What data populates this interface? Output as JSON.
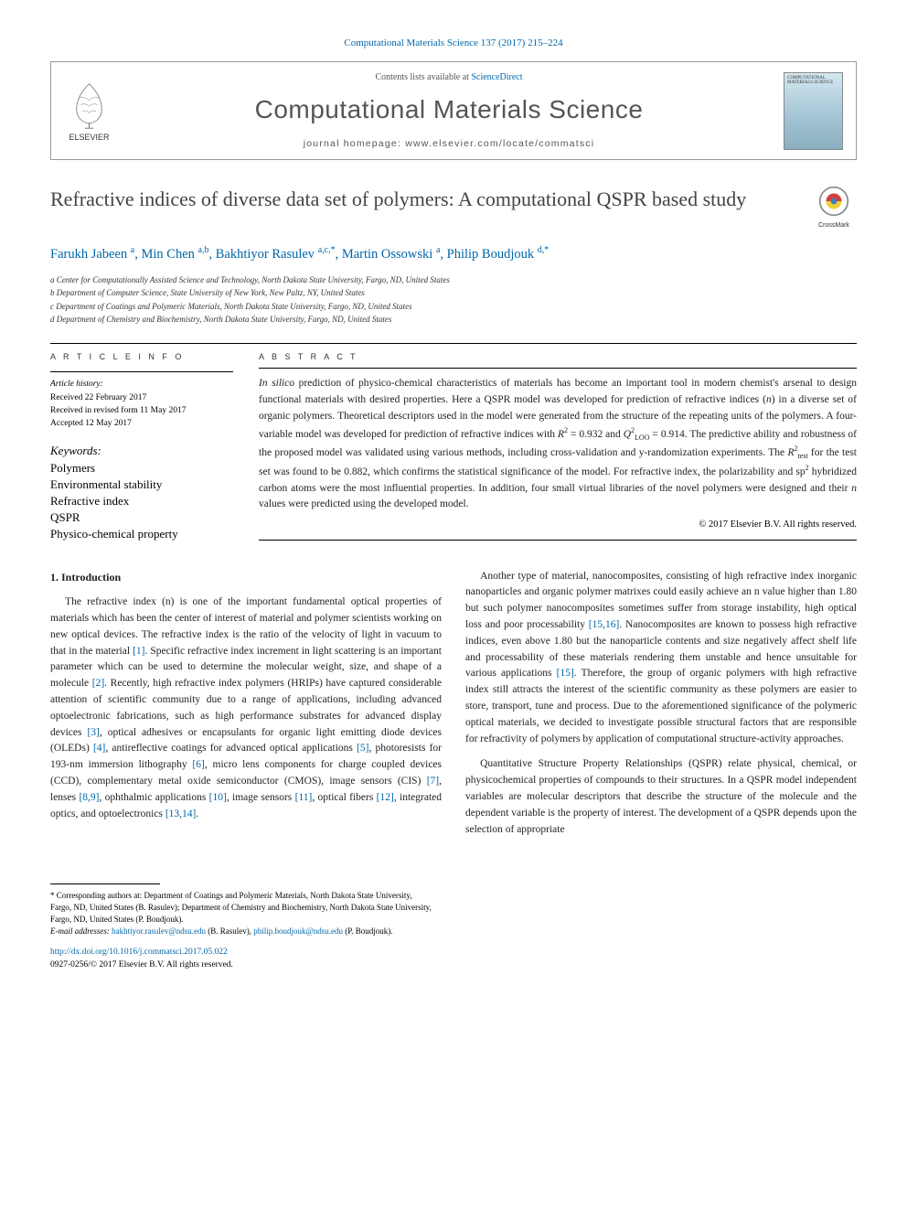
{
  "citation": "Computational Materials Science 137 (2017) 215–224",
  "header": {
    "contents_prefix": "Contents lists available at ",
    "contents_link": "ScienceDirect",
    "journal": "Computational Materials Science",
    "homepage": "journal homepage: www.elsevier.com/locate/commatsci",
    "publisher_label": "ELSEVIER",
    "cover_text": "COMPUTATIONAL MATERIALS SCIENCE"
  },
  "crossmark_label": "CrossMark",
  "title": "Refractive indices of diverse data set of polymers: A computational QSPR based study",
  "authors_html": "Farukh Jabeen <sup>a</sup>, Min Chen <sup>a,b</sup>, Bakhtiyor Rasulev <sup>a,c,*</sup>, Martin Ossowski <sup>a</sup>, Philip Boudjouk <sup>d,*</sup>",
  "affiliations": [
    "a Center for Computationally Assisted Science and Technology, North Dakota State University, Fargo, ND, United States",
    "b Department of Computer Science, State University of New York, New Paltz, NY, United States",
    "c Department of Coatings and Polymeric Materials, North Dakota State University, Fargo, ND, United States",
    "d Department of Chemistry and Biochemistry, North Dakota State University, Fargo, ND, United States"
  ],
  "info": {
    "header": "A R T I C L E   I N F O",
    "history_label": "Article history:",
    "received": "Received 22 February 2017",
    "revised": "Received in revised form 11 May 2017",
    "accepted": "Accepted 12 May 2017",
    "keywords_label": "Keywords:",
    "keywords": [
      "Polymers",
      "Environmental stability",
      "Refractive index",
      "QSPR",
      "Physico-chemical property"
    ]
  },
  "abstract": {
    "header": "A B S T R A C T",
    "text_html": "<i>In silico</i> prediction of physico-chemical characteristics of materials has become an important tool in modern chemist's arsenal to design functional materials with desired properties. Here a QSPR model was developed for prediction of refractive indices (<i>n</i>) in a diverse set of organic polymers. Theoretical descriptors used in the model were generated from the structure of the repeating units of the polymers. A four-variable model was developed for prediction of refractive indices with <i>R</i><sup>2</sup> = 0.932 and <i>Q</i><sup>2</sup><sub>LOO</sub> = 0.914. The predictive ability and robustness of the proposed model was validated using various methods, including cross-validation and y-randomization experiments. The <i>R</i><sup>2</sup><sub>test</sub> for the test set was found to be 0.882, which confirms the statistical significance of the model. For refractive index, the polarizability and sp<sup>2</sup> hybridized carbon atoms were the most influential properties. In addition, four small virtual libraries of the novel polymers were designed and their <i>n</i> values were predicted using the developed model.",
    "copyright": "© 2017 Elsevier B.V. All rights reserved."
  },
  "intro": {
    "heading": "1. Introduction",
    "p1_html": "The refractive index (n) is one of the important fundamental optical properties of materials which has been the center of interest of material and polymer scientists working on new optical devices. The refractive index is the ratio of the velocity of light in vacuum to that in the material <span class='ref-link'>[1]</span>. Specific refractive index increment in light scattering is an important parameter which can be used to determine the molecular weight, size, and shape of a molecule <span class='ref-link'>[2]</span>. Recently, high refractive index polymers (HRIPs) have captured considerable attention of scientific community due to a range of applications, including advanced optoelectronic fabrications, such as high performance substrates for advanced display devices <span class='ref-link'>[3]</span>, optical adhesives or encapsulants for organic light emitting diode devices (OLEDs) <span class='ref-link'>[4]</span>, antireflective coatings for advanced optical applications <span class='ref-link'>[5]</span>, photoresists for 193-nm immersion lithography <span class='ref-link'>[6]</span>, micro lens components for charge coupled devices (CCD), complementary metal oxide semiconductor (CMOS), image sensors (CIS) <span class='ref-link'>[7]</span>, lenses <span class='ref-link'>[8,9]</span>, ophthalmic applications <span class='ref-link'>[10]</span>, image sensors <span class='ref-link'>[11]</span>, optical fibers <span class='ref-link'>[12]</span>, integrated optics, and optoelectronics <span class='ref-link'>[13,14]</span>.",
    "p2_html": "Another type of material, nanocomposites, consisting of high refractive index inorganic nanoparticles and organic polymer matrixes could easily achieve an n value higher than 1.80 but such polymer nanocomposites sometimes suffer from storage instability, high optical loss and poor processability <span class='ref-link'>[15,16]</span>. Nanocomposites are known to possess high refractive indices, even above 1.80 but the nanoparticle contents and size negatively affect shelf life and processability of these materials rendering them unstable and hence unsuitable for various applications <span class='ref-link'>[15]</span>. Therefore, the group of organic polymers with high refractive index still attracts the interest of the scientific community as these polymers are easier to store, transport, tune and process. Due to the aforementioned significance of the polymeric optical materials, we decided to investigate possible structural factors that are responsible for refractivity of polymers by application of computational structure-activity approaches.",
    "p3_html": "Quantitative Structure Property Relationships (QSPR) relate physical, chemical, or physicochemical properties of compounds to their structures. In a QSPR model independent variables are molecular descriptors that describe the structure of the molecule and the dependent variable is the property of interest. The development of a QSPR depends upon the selection of appropriate"
  },
  "footnotes": {
    "corr_html": "* Corresponding authors at: Department of Coatings and Polymeric Materials, North Dakota State University, Fargo, ND, United States (B. Rasulev); Department of Chemistry and Biochemistry, North Dakota State University, Fargo, ND, United States (P. Boudjouk).",
    "email_label": "E-mail addresses: ",
    "email1": "bakhtiyor.rasulev@ndsu.edu",
    "email1_who": " (B. Rasulev), ",
    "email2": "philip.boudjouk@ndsu.edu",
    "email2_who": " (P. Boudjouk)."
  },
  "doi": "http://dx.doi.org/10.1016/j.commatsci.2017.05.022",
  "issn": "0927-0256/© 2017 Elsevier B.V. All rights reserved.",
  "colors": {
    "link": "#0066a8",
    "text": "#222222",
    "heading_gray": "#555555",
    "border": "#999999"
  }
}
